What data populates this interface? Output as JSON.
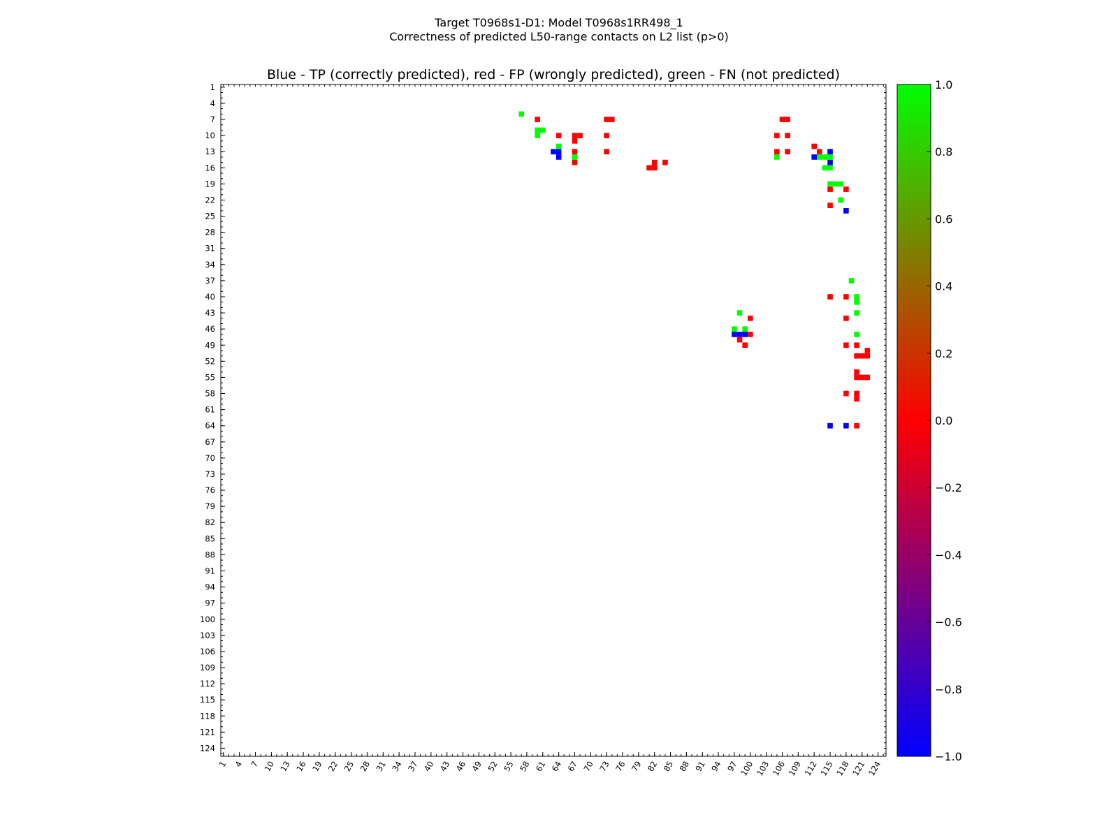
{
  "chart_data": {
    "type": "heatmap",
    "title_line1": "Target T0968s1-D1: Model T0968s1RR498_1",
    "title_line2": "Correctness of predicted L50-range contacts on L2 list (p>0)",
    "axes_title": "Blue - TP (correctly predicted), red - FP (wrongly predicted), green - FN (not predicted)",
    "xlabel": "",
    "ylabel": "",
    "xlim": [
      1,
      125
    ],
    "ylim": [
      1,
      125
    ],
    "y_inverted": true,
    "x_tick_labels": [
      "1",
      "4",
      "7",
      "10",
      "13",
      "16",
      "19",
      "22",
      "25",
      "28",
      "31",
      "34",
      "37",
      "40",
      "43",
      "46",
      "49",
      "52",
      "55",
      "58",
      "61",
      "64",
      "67",
      "70",
      "73",
      "76",
      "79",
      "82",
      "85",
      "88",
      "91",
      "94",
      "97",
      "100",
      "103",
      "106",
      "109",
      "112",
      "115",
      "118",
      "121",
      "124"
    ],
    "y_tick_labels": [
      "1",
      "4",
      "7",
      "10",
      "13",
      "16",
      "19",
      "22",
      "25",
      "28",
      "31",
      "34",
      "37",
      "40",
      "43",
      "46",
      "49",
      "52",
      "55",
      "58",
      "61",
      "64",
      "67",
      "70",
      "73",
      "76",
      "79",
      "82",
      "85",
      "88",
      "91",
      "94",
      "97",
      "100",
      "103",
      "106",
      "109",
      "112",
      "115",
      "118",
      "121",
      "124"
    ],
    "colorbar": {
      "range": [
        -1.0,
        1.0
      ],
      "tick_labels": [
        "1.0",
        "0.8",
        "0.6",
        "0.4",
        "0.2",
        "0.0",
        "−0.2",
        "−0.4",
        "−0.6",
        "−0.8",
        "−1.0"
      ],
      "tick_values": [
        1.0,
        0.8,
        0.6,
        0.4,
        0.2,
        0.0,
        -0.2,
        -0.4,
        -0.6,
        -0.8,
        -1.0
      ],
      "colors": [
        "#0000ff",
        "#ff0000",
        "#00ff00"
      ]
    },
    "series": [
      {
        "name": "TP",
        "color": "#0000ff",
        "value": -1.0,
        "cells": [
          [
            63,
            13
          ],
          [
            64,
            13
          ],
          [
            64,
            14
          ],
          [
            115,
            13
          ],
          [
            112,
            14
          ],
          [
            115,
            15
          ],
          [
            98,
            47
          ],
          [
            97,
            47
          ],
          [
            99,
            47
          ],
          [
            115,
            64
          ],
          [
            118,
            64
          ],
          [
            118,
            24
          ]
        ]
      },
      {
        "name": "FP",
        "color": "#ff0000",
        "value": 0.0,
        "cells": [
          [
            60,
            7
          ],
          [
            64,
            10
          ],
          [
            67,
            10
          ],
          [
            68,
            10
          ],
          [
            67,
            11
          ],
          [
            67,
            13
          ],
          [
            67,
            15
          ],
          [
            73,
            7
          ],
          [
            74,
            7
          ],
          [
            73,
            10
          ],
          [
            73,
            13
          ],
          [
            82,
            15
          ],
          [
            84,
            15
          ],
          [
            81,
            16
          ],
          [
            82,
            16
          ],
          [
            106,
            7
          ],
          [
            107,
            7
          ],
          [
            105,
            10
          ],
          [
            107,
            10
          ],
          [
            105,
            13
          ],
          [
            107,
            13
          ],
          [
            112,
            12
          ],
          [
            113,
            13
          ],
          [
            115,
            20
          ],
          [
            118,
            20
          ],
          [
            115,
            23
          ],
          [
            100,
            44
          ],
          [
            100,
            47
          ],
          [
            98,
            48
          ],
          [
            99,
            49
          ],
          [
            115,
            40
          ],
          [
            118,
            40
          ],
          [
            118,
            44
          ],
          [
            118,
            49
          ],
          [
            120,
            49
          ],
          [
            120,
            51
          ],
          [
            121,
            51
          ],
          [
            122,
            51
          ],
          [
            122,
            50
          ],
          [
            120,
            54
          ],
          [
            120,
            55
          ],
          [
            121,
            55
          ],
          [
            122,
            55
          ],
          [
            118,
            58
          ],
          [
            120,
            58
          ],
          [
            120,
            59
          ],
          [
            120,
            64
          ]
        ]
      },
      {
        "name": "FN",
        "color": "#00ff00",
        "value": 1.0,
        "cells": [
          [
            57,
            6
          ],
          [
            60,
            9
          ],
          [
            61,
            9
          ],
          [
            60,
            10
          ],
          [
            64,
            12
          ],
          [
            67,
            14
          ],
          [
            105,
            14
          ],
          [
            113,
            14
          ],
          [
            114,
            14
          ],
          [
            115,
            14
          ],
          [
            114,
            16
          ],
          [
            115,
            16
          ],
          [
            115,
            19
          ],
          [
            116,
            19
          ],
          [
            117,
            19
          ],
          [
            117,
            22
          ],
          [
            119,
            37
          ],
          [
            120,
            40
          ],
          [
            120,
            41
          ],
          [
            120,
            43
          ],
          [
            120,
            47
          ],
          [
            98,
            43
          ],
          [
            97,
            46
          ],
          [
            99,
            46
          ]
        ]
      }
    ]
  }
}
